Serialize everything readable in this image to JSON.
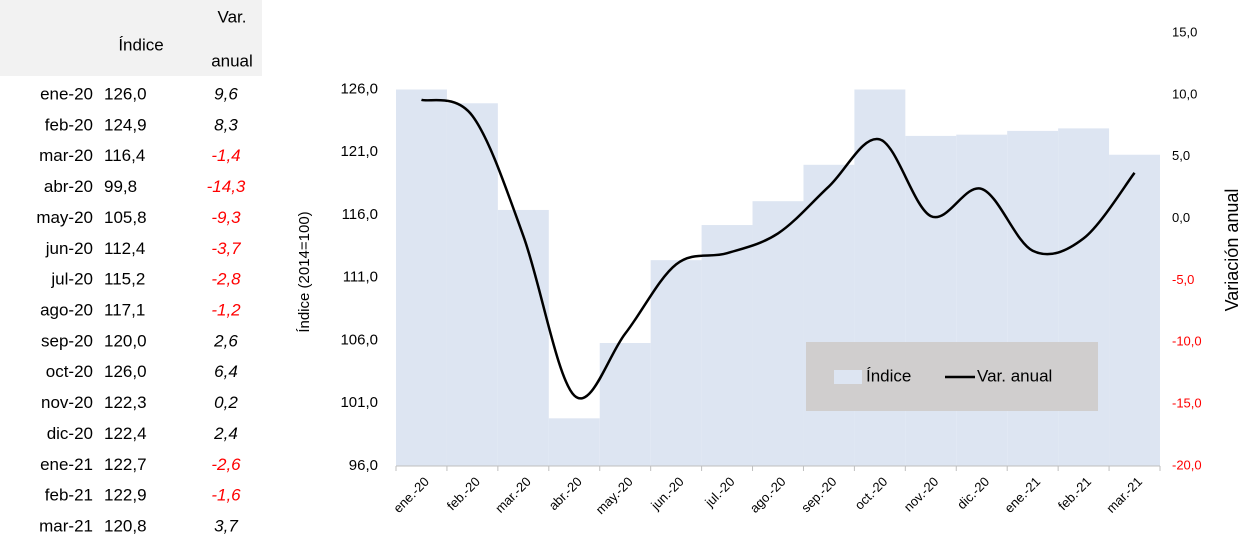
{
  "table": {
    "header": [
      "Índice",
      "Var.",
      "anual"
    ],
    "row_labels": [
      "ene-20",
      "feb-20",
      "mar-20",
      "abr-20",
      "may-20",
      "jun-20",
      "jul-20",
      "ago-20",
      "sep-20",
      "oct-20",
      "nov-20",
      "dic-20",
      "ene-21",
      "feb-21",
      "mar-21"
    ]
  },
  "chart_data": {
    "type": "bar-line",
    "categories": [
      "ene.-20",
      "feb.-20",
      "mar.-20",
      "abr.-20",
      "may.-20",
      "jun.-20",
      "jul.-20",
      "ago.-20",
      "sep.-20",
      "oct.-20",
      "nov.-20",
      "dic.-20",
      "ene.-21",
      "feb.-21",
      "mar.-21"
    ],
    "series": [
      {
        "name": "Índice",
        "type": "bar",
        "color": "#dde5f2",
        "values": [
          126.0,
          124.9,
          116.4,
          99.8,
          105.8,
          112.4,
          115.2,
          117.1,
          120.0,
          126.0,
          122.3,
          122.4,
          122.7,
          122.9,
          120.8
        ],
        "value_labels": [
          "126,0",
          "124,9",
          "116,4",
          "99,8",
          "105,8",
          "112,4",
          "115,2",
          "117,1",
          "120,0",
          "126,0",
          "122,3",
          "122,4",
          "122,7",
          "122,9",
          "120,8"
        ]
      },
      {
        "name": "Var. anual",
        "type": "line",
        "axis": "y2",
        "color": "#000000",
        "values": [
          9.6,
          8.3,
          -1.4,
          -14.3,
          -9.3,
          -3.7,
          -2.8,
          -1.2,
          2.6,
          6.4,
          0.2,
          2.4,
          -2.6,
          -1.6,
          3.7
        ],
        "value_labels": [
          "9,6",
          "8,3",
          "-1,4",
          "-14,3",
          "-9,3",
          "-3,7",
          "-2,8",
          "-1,2",
          "2,6",
          "6,4",
          "0,2",
          "2,4",
          "-2,6",
          "-1,6",
          "3,7"
        ]
      }
    ],
    "ylabel": "Índice (2014=100)",
    "y2label": "Variación anual",
    "ylim": [
      96,
      130.5
    ],
    "yticks": [
      {
        "value": 96,
        "label": "96,0"
      },
      {
        "value": 101,
        "label": "101,0"
      },
      {
        "value": 106,
        "label": "106,0"
      },
      {
        "value": 111,
        "label": "111,0"
      },
      {
        "value": 116,
        "label": "116,0"
      },
      {
        "value": 121,
        "label": "121,0"
      },
      {
        "value": 126,
        "label": "126,0"
      }
    ],
    "y2lim": [
      -20,
      15
    ],
    "y2ticks": [
      {
        "value": -20,
        "label": "-20,0"
      },
      {
        "value": -15,
        "label": "-15,0"
      },
      {
        "value": -10,
        "label": "-10,0"
      },
      {
        "value": -5,
        "label": "-5,0"
      },
      {
        "value": 0,
        "label": "0,0"
      },
      {
        "value": 5,
        "label": "5,0"
      },
      {
        "value": 10,
        "label": "10,0"
      },
      {
        "value": 15,
        "label": "15,0"
      }
    ],
    "negative_color": "#ff0000",
    "legend": "lower right"
  }
}
